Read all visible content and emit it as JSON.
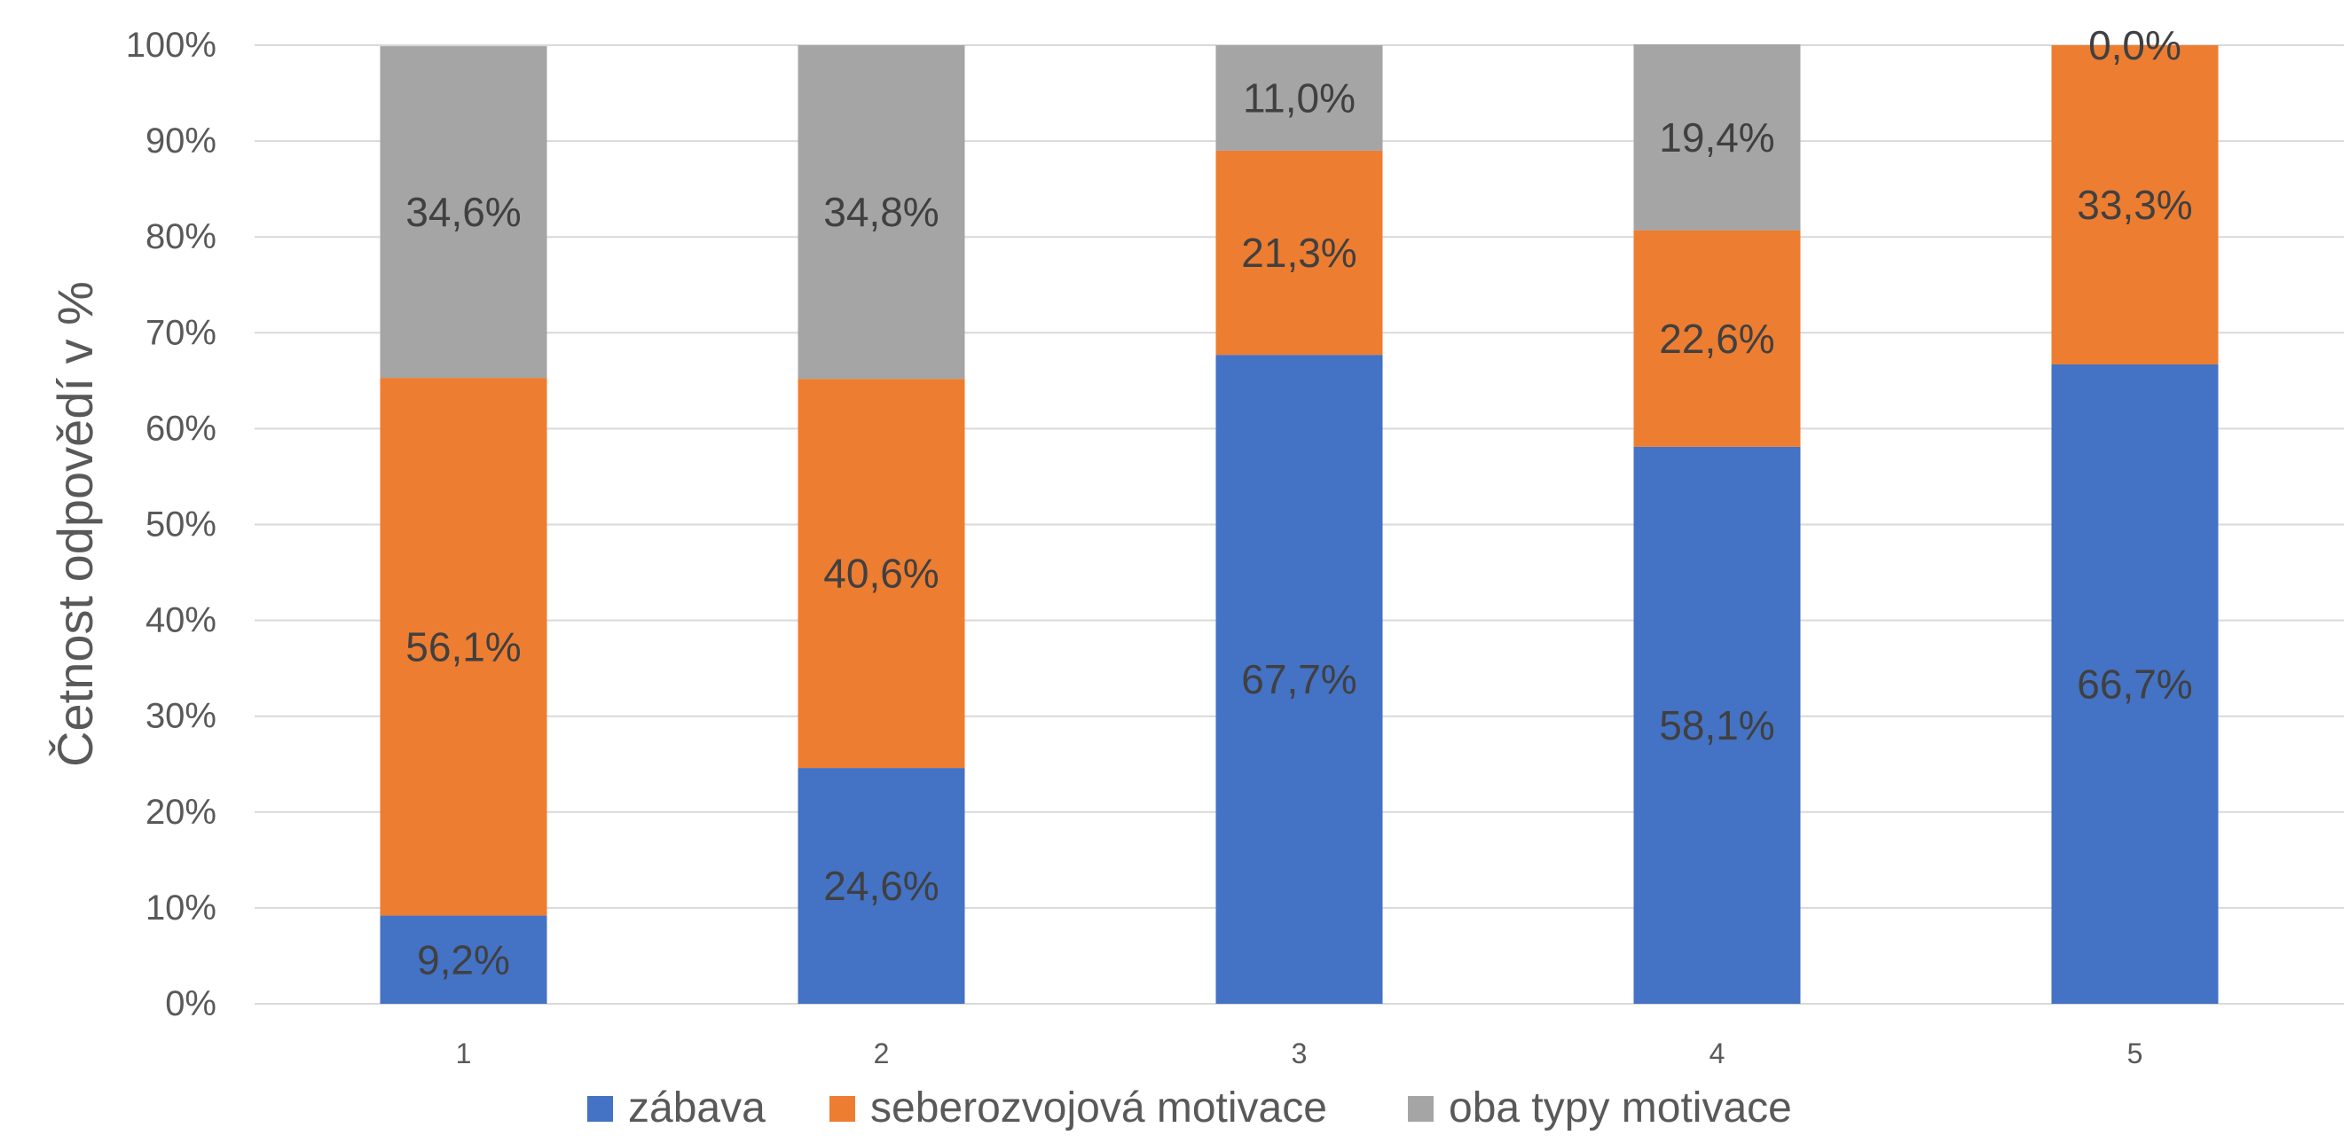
{
  "chart_data": {
    "type": "bar",
    "stacked": true,
    "percent_stacked": true,
    "categories": [
      "1",
      "2",
      "3",
      "4",
      "5"
    ],
    "series": [
      {
        "name": "zábava",
        "color": "#4472C4",
        "values": [
          9.2,
          24.6,
          67.7,
          58.1,
          66.7
        ],
        "labels": [
          "9,2%",
          "24,6%",
          "67,7%",
          "58,1%",
          "66,7%"
        ]
      },
      {
        "name": "seberozvojová motivace",
        "color": "#ED7D31",
        "values": [
          56.1,
          40.6,
          21.3,
          22.6,
          33.3
        ],
        "labels": [
          "56,1%",
          "40,6%",
          "21,3%",
          "22,6%",
          "33,3%"
        ]
      },
      {
        "name": "oba typy motivace",
        "color": "#A5A5A5",
        "values": [
          34.6,
          34.8,
          11.0,
          19.4,
          0.0
        ],
        "labels": [
          "34,6%",
          "34,8%",
          "11,0%",
          "19,4%",
          "0,0%"
        ]
      }
    ],
    "ylabel": "Četnost odpovědí v %",
    "ylim": [
      0,
      100
    ],
    "yticks": [
      0,
      10,
      20,
      30,
      40,
      50,
      60,
      70,
      80,
      90,
      100
    ],
    "ytick_labels": [
      "0%",
      "10%",
      "20%",
      "30%",
      "40%",
      "50%",
      "60%",
      "70%",
      "80%",
      "90%",
      "100%"
    ],
    "grid": true,
    "legend": "bottom"
  }
}
